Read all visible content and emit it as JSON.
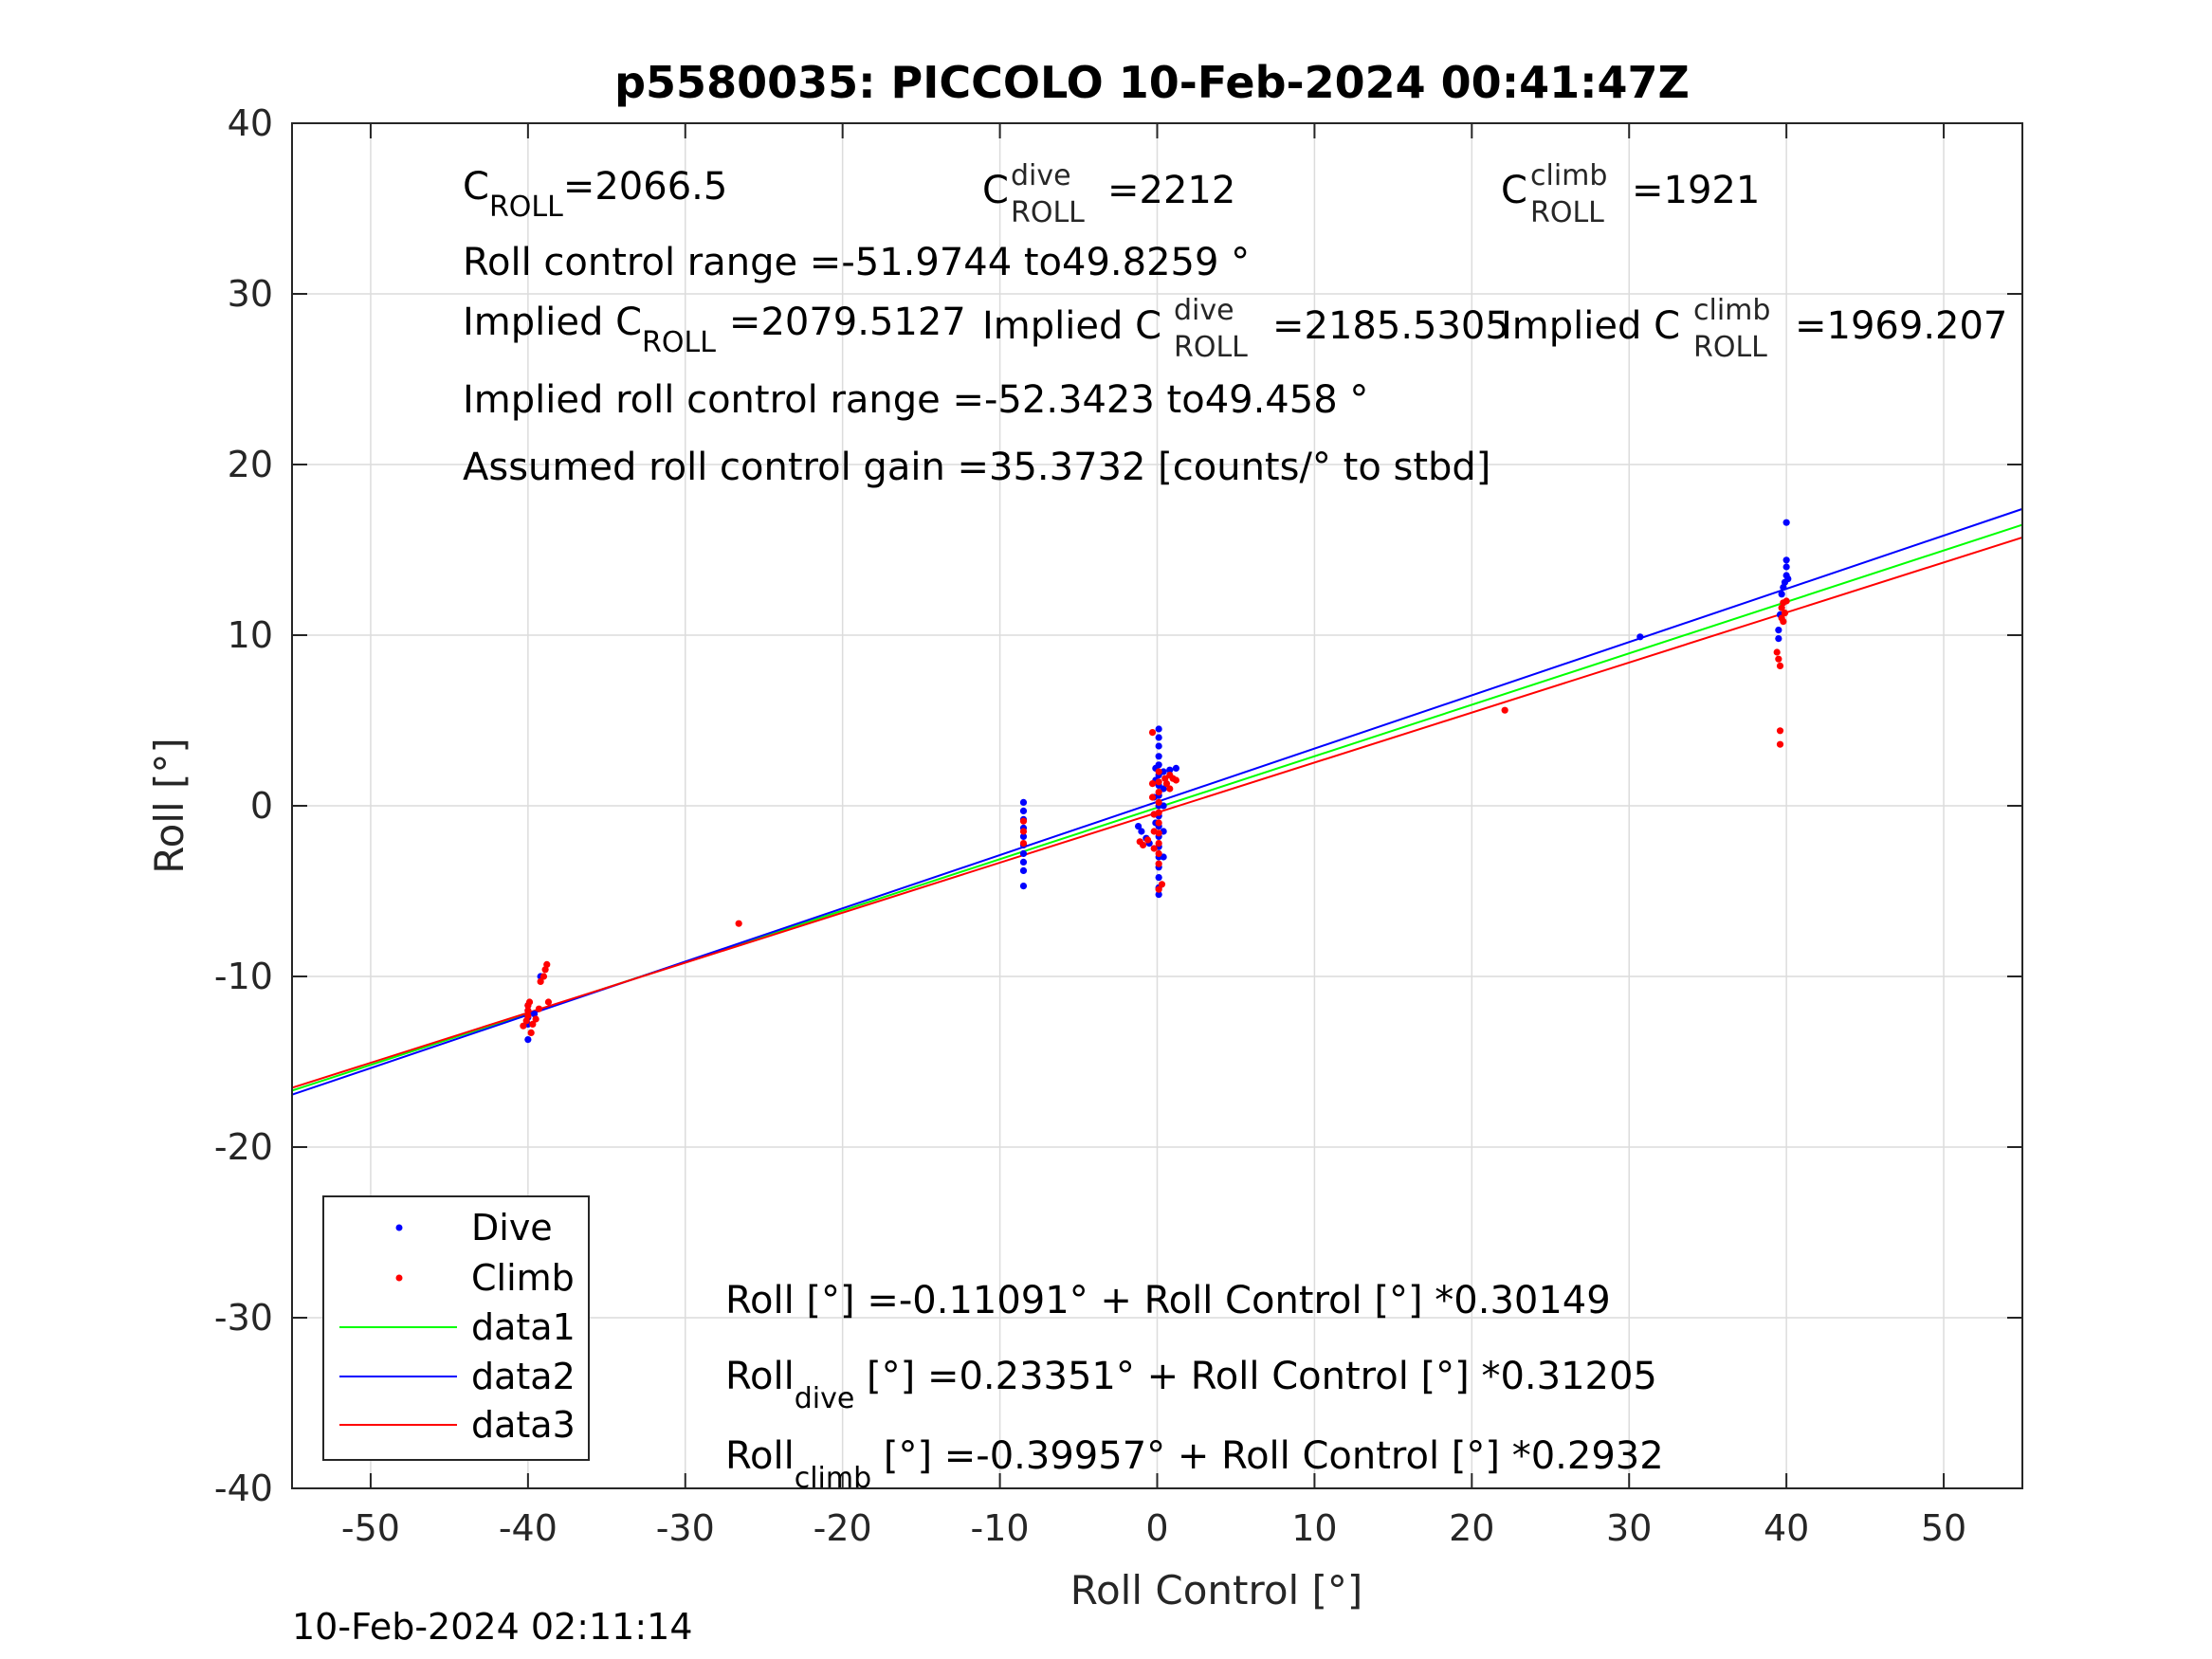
{
  "colors": {
    "dive": "#0000ff",
    "climb": "#ff0000",
    "data1": "#00ff00",
    "data2": "#0000ff",
    "data3": "#ff0000",
    "grid": "#dcdcdc",
    "axis": "#262626"
  },
  "timestamp": "10-Feb-2024 02:11:14",
  "annotations": {
    "c_roll": {
      "base": "C",
      "sub": "ROLL",
      "value": "=2066.5"
    },
    "c_roll_dive": {
      "base": "C",
      "sup": "dive",
      "sub": "ROLL",
      "value": "=2212"
    },
    "c_roll_climb": {
      "base": "C",
      "sup": "climb",
      "sub": "ROLL",
      "value": "=1921"
    },
    "roll_range": "Roll control range =-51.9744 to49.8259 °",
    "implied_c_roll": {
      "prefix": "Implied C",
      "sub": "ROLL",
      "value": "=2079.5127"
    },
    "implied_c_roll_dive": {
      "prefix": "Implied C",
      "sup": "dive",
      "sub": "ROLL",
      "value": "=2185.5305"
    },
    "implied_c_roll_climb": {
      "prefix": "Implied C",
      "sup": "climb",
      "sub": "ROLL",
      "value": "=1969.207"
    },
    "implied_range": "Implied roll control range =-52.3423 to49.458 °",
    "gain": "Assumed roll control gain =35.3732 [counts/° to stbd]",
    "fit_all": "Roll [°] =-0.11091° + Roll Control [°] *0.30149",
    "fit_dive": {
      "base": "Roll",
      "sub": "dive",
      "rest": " [°] =0.23351° + Roll Control [°] *0.31205"
    },
    "fit_climb": {
      "base": "Roll",
      "sub": "climb",
      "rest": " [°] =-0.39957° + Roll Control [°] *0.2932"
    }
  },
  "chart_data": {
    "type": "scatter",
    "title": "p5580035: PICCOLO 10-Feb-2024 00:41:47Z",
    "xlabel": "Roll Control [°]",
    "ylabel": "Roll [°]",
    "xlim": [
      -55,
      55
    ],
    "ylim": [
      -40,
      40
    ],
    "xticks": [
      -50,
      -40,
      -30,
      -20,
      -10,
      0,
      10,
      20,
      30,
      40,
      50
    ],
    "yticks": [
      -40,
      -30,
      -20,
      -10,
      0,
      10,
      20,
      30,
      40
    ],
    "grid": true,
    "legend": "bottom-left",
    "legend_entries": [
      "Dive",
      "Climb",
      "data1",
      "data2",
      "data3"
    ],
    "series": [
      {
        "name": "Dive",
        "kind": "points",
        "points": [
          [
            -40,
            -13.7
          ],
          [
            -40,
            -12.8
          ],
          [
            -40,
            -12.4
          ],
          [
            -40,
            -12.0
          ],
          [
            -40,
            -11.7
          ],
          [
            -39.6,
            -12.2
          ],
          [
            -39.2,
            -10.0
          ],
          [
            -8.5,
            0.2
          ],
          [
            -8.5,
            -0.3
          ],
          [
            -8.5,
            -0.8
          ],
          [
            -8.5,
            -1.3
          ],
          [
            -8.5,
            -1.8
          ],
          [
            -8.5,
            -2.3
          ],
          [
            -8.5,
            -2.8
          ],
          [
            -8.5,
            -3.3
          ],
          [
            -8.5,
            -3.8
          ],
          [
            -8.5,
            -4.7
          ],
          [
            -1.2,
            -1.2
          ],
          [
            -1.0,
            -1.5
          ],
          [
            -0.7,
            -1.9
          ],
          [
            -0.5,
            -2.2
          ],
          [
            -0.2,
            -0.5
          ],
          [
            -0.2,
            0.5
          ],
          [
            -0.1,
            1.5
          ],
          [
            -0.1,
            2.2
          ],
          [
            -0.1,
            -1.0
          ],
          [
            0.1,
            4.5
          ],
          [
            0.1,
            4.0
          ],
          [
            0.1,
            3.5
          ],
          [
            0.1,
            2.9
          ],
          [
            0.1,
            2.4
          ],
          [
            0.1,
            1.8
          ],
          [
            0.1,
            1.2
          ],
          [
            0.1,
            0.6
          ],
          [
            0.1,
            0.0
          ],
          [
            0.1,
            -0.6
          ],
          [
            0.1,
            -1.2
          ],
          [
            0.1,
            -1.8
          ],
          [
            0.1,
            -2.4
          ],
          [
            0.1,
            -3.0
          ],
          [
            0.1,
            -3.6
          ],
          [
            0.1,
            -4.2
          ],
          [
            0.1,
            -4.8
          ],
          [
            0.1,
            -5.2
          ],
          [
            0.4,
            2.0
          ],
          [
            0.4,
            1.0
          ],
          [
            0.4,
            0.0
          ],
          [
            0.4,
            -1.5
          ],
          [
            0.4,
            -3.0
          ],
          [
            0.8,
            2.1
          ],
          [
            1.2,
            2.2
          ],
          [
            30.7,
            9.9
          ],
          [
            39.5,
            9.8
          ],
          [
            39.5,
            10.3
          ],
          [
            39.6,
            11.2
          ],
          [
            39.7,
            12.4
          ],
          [
            39.8,
            12.8
          ],
          [
            39.9,
            13.1
          ],
          [
            40.0,
            13.5
          ],
          [
            40.0,
            14.0
          ],
          [
            40.0,
            14.4
          ],
          [
            40.0,
            16.6
          ],
          [
            40.1,
            13.3
          ]
        ]
      },
      {
        "name": "Climb",
        "kind": "points",
        "points": [
          [
            -40.3,
            -12.9
          ],
          [
            -40.1,
            -12.6
          ],
          [
            -40.0,
            -12.3
          ],
          [
            -40.0,
            -12.0
          ],
          [
            -40.0,
            -11.7
          ],
          [
            -39.9,
            -11.5
          ],
          [
            -39.8,
            -13.3
          ],
          [
            -39.7,
            -12.8
          ],
          [
            -39.5,
            -12.5
          ],
          [
            -39.3,
            -11.9
          ],
          [
            -39.2,
            -10.3
          ],
          [
            -39.0,
            -10.0
          ],
          [
            -38.9,
            -9.6
          ],
          [
            -38.8,
            -9.3
          ],
          [
            -38.7,
            -11.5
          ],
          [
            -26.6,
            -6.9
          ],
          [
            -8.5,
            -0.9
          ],
          [
            -8.5,
            -1.5
          ],
          [
            -8.5,
            -2.2
          ],
          [
            -1.1,
            -2.1
          ],
          [
            -0.9,
            -2.3
          ],
          [
            -0.6,
            -2.0
          ],
          [
            -0.3,
            4.3
          ],
          [
            -0.3,
            1.3
          ],
          [
            -0.3,
            0.5
          ],
          [
            -0.2,
            -0.5
          ],
          [
            -0.2,
            -1.5
          ],
          [
            -0.2,
            -2.5
          ],
          [
            0.1,
            2.0
          ],
          [
            0.1,
            1.4
          ],
          [
            0.1,
            0.8
          ],
          [
            0.1,
            0.2
          ],
          [
            0.1,
            -0.4
          ],
          [
            0.1,
            -1.0
          ],
          [
            0.1,
            -1.6
          ],
          [
            0.1,
            -2.2
          ],
          [
            0.1,
            -2.8
          ],
          [
            0.1,
            -3.4
          ],
          [
            0.1,
            -4.9
          ],
          [
            0.3,
            -4.6
          ],
          [
            0.5,
            1.6
          ],
          [
            0.6,
            1.3
          ],
          [
            0.8,
            1.8
          ],
          [
            0.8,
            1.0
          ],
          [
            1.0,
            1.6
          ],
          [
            1.2,
            1.5
          ],
          [
            22.1,
            5.6
          ],
          [
            39.4,
            9.0
          ],
          [
            39.5,
            8.6
          ],
          [
            39.6,
            8.2
          ],
          [
            39.6,
            4.4
          ],
          [
            39.6,
            3.6
          ],
          [
            39.7,
            11.0
          ],
          [
            39.7,
            11.6
          ],
          [
            39.8,
            10.8
          ],
          [
            39.8,
            11.9
          ],
          [
            39.9,
            11.3
          ],
          [
            40.0,
            12.0
          ]
        ]
      },
      {
        "name": "data1",
        "kind": "line",
        "intercept": -0.11091,
        "slope": 0.30149
      },
      {
        "name": "data2",
        "kind": "line",
        "intercept": 0.23351,
        "slope": 0.31205
      },
      {
        "name": "data3",
        "kind": "line",
        "intercept": -0.39957,
        "slope": 0.2932
      }
    ]
  }
}
